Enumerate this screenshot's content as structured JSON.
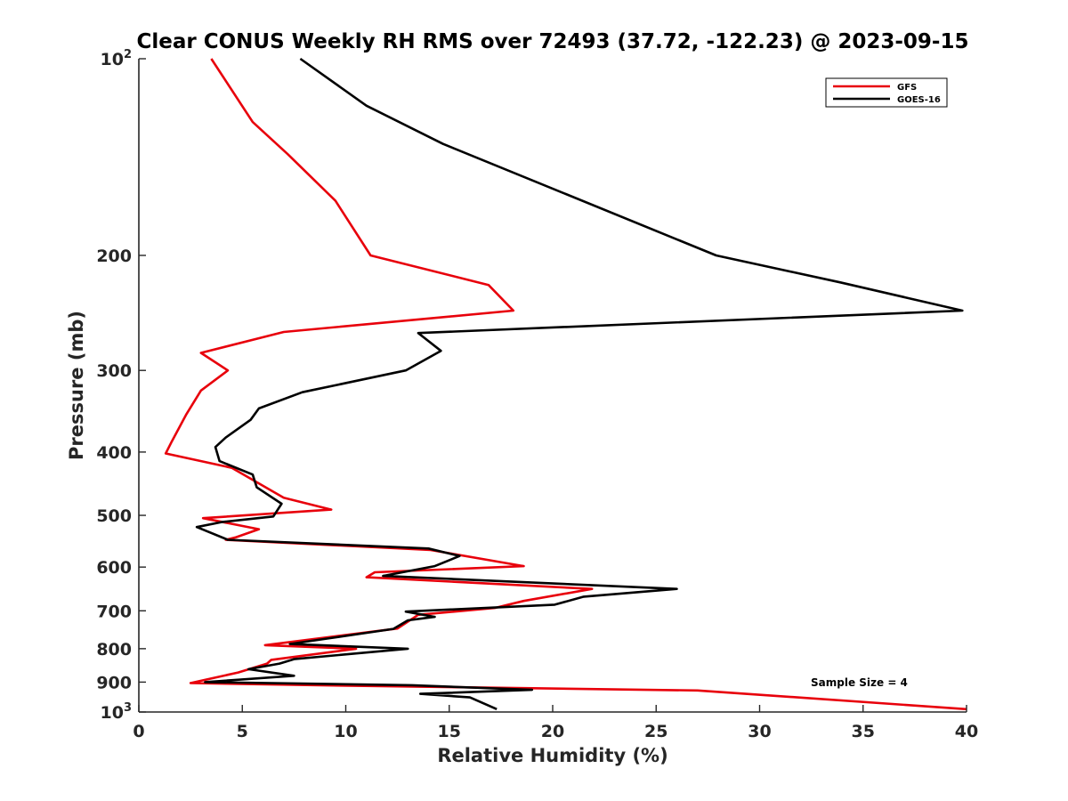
{
  "chart_data": {
    "type": "line",
    "title": "Clear CONUS Weekly RH RMS over 72493 (37.72, -122.23) @ 2023-09-15",
    "xlabel": "Relative Humidity (%)",
    "ylabel": "Pressure (mb)",
    "xlim": [
      0,
      40
    ],
    "ylim": [
      100,
      1000
    ],
    "yscale": "log",
    "y_reversed": true,
    "grid": false,
    "legend_position": "top-right",
    "x_ticks": [
      "0",
      "5",
      "10",
      "15",
      "20",
      "25",
      "30",
      "35",
      "40"
    ],
    "x_tick_values": [
      0,
      5,
      10,
      15,
      20,
      25,
      30,
      35,
      40
    ],
    "y_ticks": [
      {
        "value": 100,
        "base": "10",
        "exp": "2"
      },
      {
        "value": 200,
        "label": "200"
      },
      {
        "value": 300,
        "label": "300"
      },
      {
        "value": 400,
        "label": "400"
      },
      {
        "value": 500,
        "label": "500"
      },
      {
        "value": 600,
        "label": "600"
      },
      {
        "value": 700,
        "label": "700"
      },
      {
        "value": 800,
        "label": "800"
      },
      {
        "value": 900,
        "label": "900"
      },
      {
        "value": 1000,
        "base": "10",
        "exp": "3"
      }
    ],
    "annotation": "Sample Size = 4",
    "series": [
      {
        "name": "GFS",
        "color": "#e8000b",
        "points": [
          [
            3.5,
            100
          ],
          [
            5.5,
            125
          ],
          [
            7.2,
            140
          ],
          [
            9.5,
            165
          ],
          [
            11.2,
            200
          ],
          [
            16.9,
            222
          ],
          [
            18.1,
            243
          ],
          [
            7.0,
            262
          ],
          [
            3.0,
            282
          ],
          [
            4.3,
            300
          ],
          [
            3.0,
            322
          ],
          [
            2.3,
            350
          ],
          [
            1.6,
            385
          ],
          [
            1.3,
            402
          ],
          [
            4.5,
            423
          ],
          [
            7.0,
            470
          ],
          [
            9.3,
            490
          ],
          [
            3.1,
            505
          ],
          [
            5.8,
            525
          ],
          [
            4.7,
            540
          ],
          [
            4.2,
            545
          ],
          [
            14.1,
            565
          ],
          [
            18.6,
            598
          ],
          [
            11.4,
            611
          ],
          [
            11.0,
            622
          ],
          [
            21.9,
            648
          ],
          [
            18.6,
            676
          ],
          [
            17.2,
            693
          ],
          [
            13.5,
            710
          ],
          [
            12.5,
            745
          ],
          [
            6.1,
            790
          ],
          [
            10.5,
            800
          ],
          [
            6.4,
            832
          ],
          [
            6.2,
            843
          ],
          [
            4.8,
            870
          ],
          [
            2.5,
            903
          ],
          [
            10.5,
            912
          ],
          [
            27.0,
            927
          ],
          [
            40.0,
            990
          ]
        ]
      },
      {
        "name": "GOES-16",
        "color": "#000000",
        "points": [
          [
            7.8,
            100
          ],
          [
            11.0,
            118
          ],
          [
            14.7,
            135
          ],
          [
            27.9,
            200
          ],
          [
            33.9,
            220
          ],
          [
            39.8,
            243
          ],
          [
            13.5,
            263
          ],
          [
            14.6,
            280
          ],
          [
            12.9,
            300
          ],
          [
            7.9,
            324
          ],
          [
            5.8,
            343
          ],
          [
            5.4,
            357
          ],
          [
            4.2,
            380
          ],
          [
            3.7,
            393
          ],
          [
            3.9,
            413
          ],
          [
            5.5,
            433
          ],
          [
            5.7,
            453
          ],
          [
            6.9,
            480
          ],
          [
            6.5,
            502
          ],
          [
            4.0,
            512
          ],
          [
            2.8,
            521
          ],
          [
            4.3,
            545
          ],
          [
            14.0,
            562
          ],
          [
            15.5,
            577
          ],
          [
            14.3,
            598
          ],
          [
            11.8,
            619
          ],
          [
            26.0,
            648
          ],
          [
            21.5,
            666
          ],
          [
            20.1,
            685
          ],
          [
            12.9,
            702
          ],
          [
            14.3,
            715
          ],
          [
            13.0,
            724
          ],
          [
            12.3,
            746
          ],
          [
            9.1,
            772
          ],
          [
            7.3,
            787
          ],
          [
            13.0,
            800
          ],
          [
            7.5,
            830
          ],
          [
            6.8,
            843
          ],
          [
            5.3,
            860
          ],
          [
            7.5,
            880
          ],
          [
            3.2,
            900
          ],
          [
            13.2,
            910
          ],
          [
            19.0,
            925
          ],
          [
            13.6,
            938
          ],
          [
            16.0,
            950
          ],
          [
            17.3,
            990
          ]
        ]
      }
    ]
  }
}
